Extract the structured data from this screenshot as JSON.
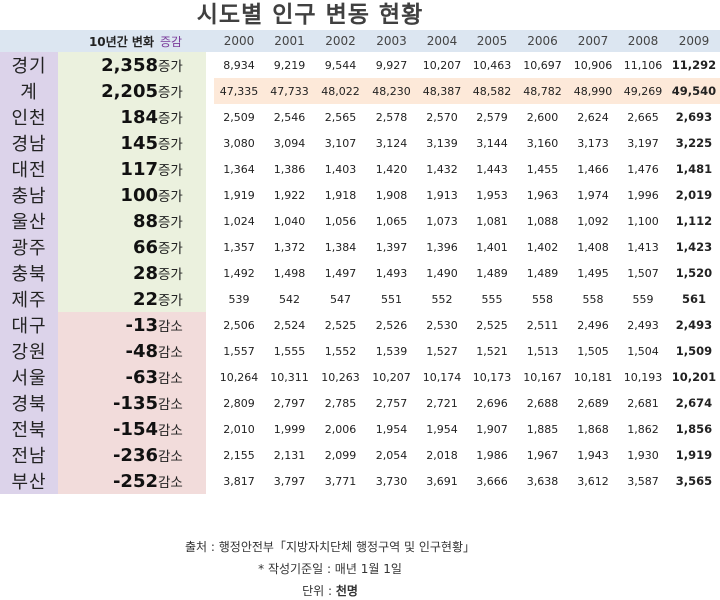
{
  "title": "시도별 인구 변동 현황",
  "header": {
    "change_label": "10년간 변화",
    "gam_label": "증감",
    "years": [
      "2000",
      "2001",
      "2002",
      "2003",
      "2004",
      "2005",
      "2006",
      "2007",
      "2008",
      "2009"
    ]
  },
  "rows": [
    {
      "region": "경기",
      "change": "2,358",
      "gam": "증가",
      "type": "inc",
      "values": [
        "8,934",
        "9,219",
        "9,544",
        "9,927",
        "10,207",
        "10,463",
        "10,697",
        "10,906",
        "11,106",
        "11,292"
      ]
    },
    {
      "region": "계",
      "change": "2,205",
      "gam": "증가",
      "type": "inc",
      "total": true,
      "values": [
        "47,335",
        "47,733",
        "48,022",
        "48,230",
        "48,387",
        "48,582",
        "48,782",
        "48,990",
        "49,269",
        "49,540"
      ]
    },
    {
      "region": "인천",
      "change": "184",
      "gam": "증가",
      "type": "inc",
      "values": [
        "2,509",
        "2,546",
        "2,565",
        "2,578",
        "2,570",
        "2,579",
        "2,600",
        "2,624",
        "2,665",
        "2,693"
      ]
    },
    {
      "region": "경남",
      "change": "145",
      "gam": "증가",
      "type": "inc",
      "values": [
        "3,080",
        "3,094",
        "3,107",
        "3,124",
        "3,139",
        "3,144",
        "3,160",
        "3,173",
        "3,197",
        "3,225"
      ]
    },
    {
      "region": "대전",
      "change": "117",
      "gam": "증가",
      "type": "inc",
      "values": [
        "1,364",
        "1,386",
        "1,403",
        "1,420",
        "1,432",
        "1,443",
        "1,455",
        "1,466",
        "1,476",
        "1,481"
      ]
    },
    {
      "region": "충남",
      "change": "100",
      "gam": "증가",
      "type": "inc",
      "values": [
        "1,919",
        "1,922",
        "1,918",
        "1,908",
        "1,913",
        "1,953",
        "1,963",
        "1,974",
        "1,996",
        "2,019"
      ]
    },
    {
      "region": "울산",
      "change": "88",
      "gam": "증가",
      "type": "inc",
      "values": [
        "1,024",
        "1,040",
        "1,056",
        "1,065",
        "1,073",
        "1,081",
        "1,088",
        "1,092",
        "1,100",
        "1,112"
      ]
    },
    {
      "region": "광주",
      "change": "66",
      "gam": "증가",
      "type": "inc",
      "values": [
        "1,357",
        "1,372",
        "1,384",
        "1,397",
        "1,396",
        "1,401",
        "1,402",
        "1,408",
        "1,413",
        "1,423"
      ]
    },
    {
      "region": "충북",
      "change": "28",
      "gam": "증가",
      "type": "inc",
      "values": [
        "1,492",
        "1,498",
        "1,497",
        "1,493",
        "1,490",
        "1,489",
        "1,489",
        "1,495",
        "1,507",
        "1,520"
      ]
    },
    {
      "region": "제주",
      "change": "22",
      "gam": "증가",
      "type": "inc",
      "values": [
        "539",
        "542",
        "547",
        "551",
        "552",
        "555",
        "558",
        "558",
        "559",
        "561"
      ]
    },
    {
      "region": "대구",
      "change": "-13",
      "gam": "감소",
      "type": "dec",
      "values": [
        "2,506",
        "2,524",
        "2,525",
        "2,526",
        "2,530",
        "2,525",
        "2,511",
        "2,496",
        "2,493",
        "2,493"
      ]
    },
    {
      "region": "강원",
      "change": "-48",
      "gam": "감소",
      "type": "dec",
      "values": [
        "1,557",
        "1,555",
        "1,552",
        "1,539",
        "1,527",
        "1,521",
        "1,513",
        "1,505",
        "1,504",
        "1,509"
      ]
    },
    {
      "region": "서울",
      "change": "-63",
      "gam": "감소",
      "type": "dec",
      "values": [
        "10,264",
        "10,311",
        "10,263",
        "10,207",
        "10,174",
        "10,173",
        "10,167",
        "10,181",
        "10,193",
        "10,201"
      ]
    },
    {
      "region": "경북",
      "change": "-135",
      "gam": "감소",
      "type": "dec",
      "values": [
        "2,809",
        "2,797",
        "2,785",
        "2,757",
        "2,721",
        "2,696",
        "2,688",
        "2,689",
        "2,681",
        "2,674"
      ]
    },
    {
      "region": "전북",
      "change": "-154",
      "gam": "감소",
      "type": "dec",
      "values": [
        "2,010",
        "1,999",
        "2,006",
        "1,954",
        "1,954",
        "1,907",
        "1,885",
        "1,868",
        "1,862",
        "1,856"
      ]
    },
    {
      "region": "전남",
      "change": "-236",
      "gam": "감소",
      "type": "dec",
      "values": [
        "2,155",
        "2,131",
        "2,099",
        "2,054",
        "2,018",
        "1,986",
        "1,967",
        "1,943",
        "1,930",
        "1,919"
      ]
    },
    {
      "region": "부산",
      "change": "-252",
      "gam": "감소",
      "type": "dec",
      "values": [
        "3,817",
        "3,797",
        "3,771",
        "3,730",
        "3,691",
        "3,666",
        "3,638",
        "3,612",
        "3,587",
        "3,565"
      ]
    }
  ],
  "footer": {
    "source_prefix": "출처 : ",
    "source_text": "행정안전부「지방자치단체 행정구역 및 인구현황」",
    "basis_note": "* 작성기준일 : 매년 1월 1일",
    "unit_prefix": "단위 : ",
    "unit_value": "천명"
  }
}
